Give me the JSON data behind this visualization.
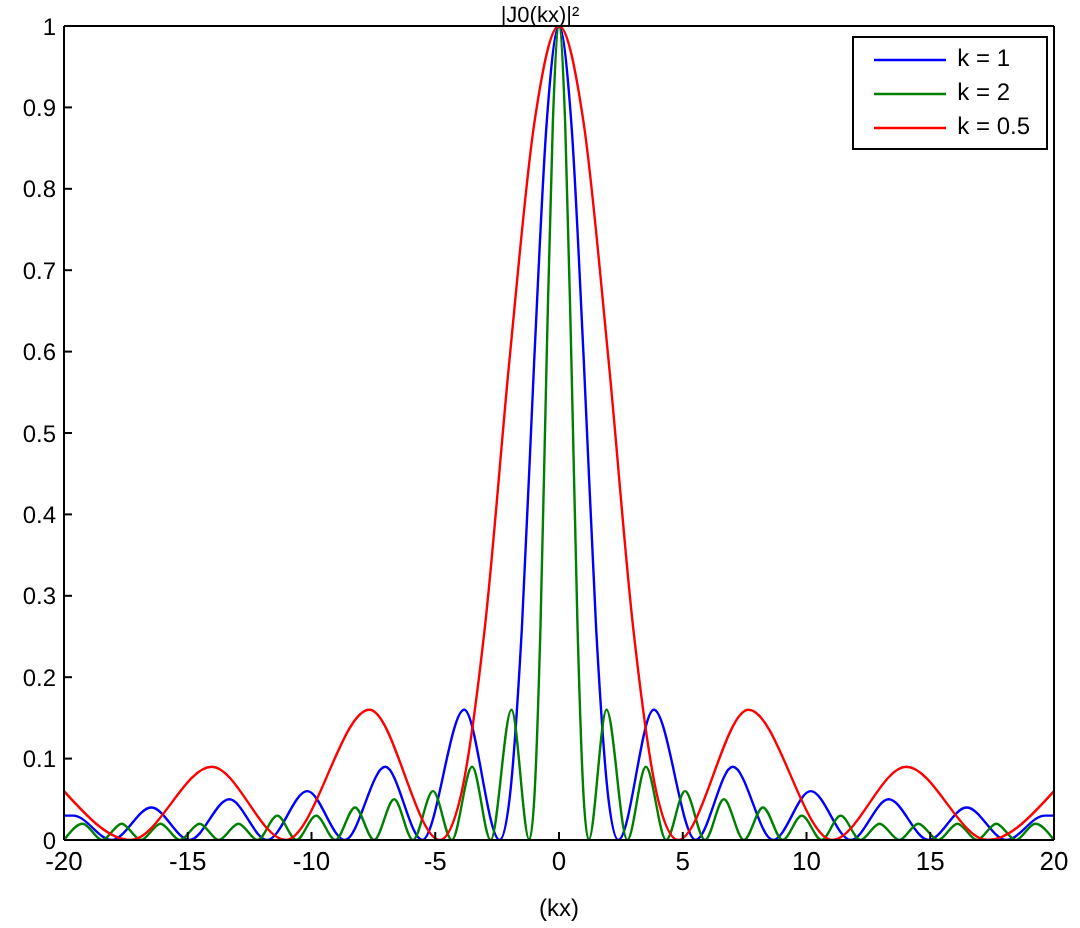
{
  "chart_data": {
    "type": "line",
    "title": "|J0(kx)|²",
    "xlabel": "(kx)",
    "xlim": [
      -20,
      20
    ],
    "xticks": [
      -20,
      -15,
      -10,
      -5,
      0,
      5,
      10,
      15,
      20
    ],
    "ylim": [
      0,
      1
    ],
    "yticks": [
      0,
      0.1,
      0.2,
      0.3,
      0.4,
      0.5,
      0.6,
      0.7,
      0.8,
      0.9,
      1
    ],
    "grid": false,
    "legend": "top right",
    "marker": "none",
    "line_style": "solid",
    "series": [
      {
        "name": "k = 1",
        "color": "#0000ff",
        "x": [
          -20,
          -19.62,
          -18.07,
          -16.47,
          -14.93,
          -13.32,
          -11.79,
          -10.17,
          -8.65,
          -7.02,
          -5.52,
          -3.83,
          -2.4,
          -2,
          -1.5,
          -1,
          -0.5,
          0,
          0.5,
          1,
          1.5,
          2,
          2.4,
          3.83,
          5.52,
          7.02,
          8.65,
          10.17,
          11.79,
          13.32,
          14.93,
          16.47,
          18.07,
          19.62,
          20
        ],
        "values": [
          0.03,
          0.03,
          0,
          0.04,
          0,
          0.05,
          0,
          0.06,
          0,
          0.09,
          0,
          0.16,
          0,
          0.05,
          0.26,
          0.59,
          0.88,
          1,
          0.88,
          0.59,
          0.26,
          0.05,
          0,
          0.16,
          0,
          0.09,
          0,
          0.06,
          0,
          0.05,
          0,
          0.04,
          0,
          0.03,
          0.03
        ]
      },
      {
        "name": "k = 2",
        "color": "#008000",
        "x": [
          -20,
          -19.24,
          -18.46,
          -17.67,
          -16.89,
          -16.1,
          -15.32,
          -14.52,
          -13.75,
          -12.95,
          -12.18,
          -11.38,
          -10.61,
          -9.81,
          -9.04,
          -8.24,
          -7.47,
          -6.66,
          -5.9,
          -5.09,
          -4.33,
          -3.51,
          -2.76,
          -1.92,
          -1.2,
          -1,
          -0.75,
          -0.5,
          -0.25,
          0,
          0.25,
          0.5,
          0.75,
          1,
          1.2,
          1.92,
          2.76,
          3.51,
          4.33,
          5.09,
          5.9,
          6.66,
          7.47,
          8.24,
          9.04,
          9.81,
          10.61,
          11.38,
          12.18,
          12.95,
          13.75,
          14.52,
          15.32,
          16.1,
          16.89,
          17.67,
          18.46,
          19.24,
          20
        ],
        "values": [
          0,
          0.02,
          0,
          0.02,
          0,
          0.02,
          0,
          0.02,
          0,
          0.02,
          0,
          0.03,
          0,
          0.03,
          0,
          0.04,
          0,
          0.05,
          0,
          0.06,
          0,
          0.09,
          0,
          0.16,
          0,
          0.05,
          0.26,
          0.59,
          0.88,
          1,
          0.88,
          0.59,
          0.26,
          0.05,
          0,
          0.16,
          0,
          0.09,
          0,
          0.06,
          0,
          0.05,
          0,
          0.04,
          0,
          0.03,
          0,
          0.03,
          0,
          0.02,
          0,
          0.02,
          0,
          0.02,
          0,
          0.02,
          0,
          0.02,
          0
        ]
      },
      {
        "name": "k = 0.5",
        "color": "#ff0000",
        "x": [
          -20,
          -17.31,
          -14.03,
          -11.04,
          -7.66,
          -4.81,
          -4,
          -3,
          -2,
          -1,
          0,
          1,
          2,
          3,
          4,
          4.81,
          7.66,
          11.04,
          14.03,
          17.31,
          20
        ],
        "values": [
          0.06,
          0,
          0.09,
          0,
          0.16,
          0,
          0.05,
          0.26,
          0.59,
          0.88,
          1,
          0.88,
          0.59,
          0.26,
          0.05,
          0,
          0.16,
          0,
          0.09,
          0,
          0.06
        ]
      }
    ]
  }
}
